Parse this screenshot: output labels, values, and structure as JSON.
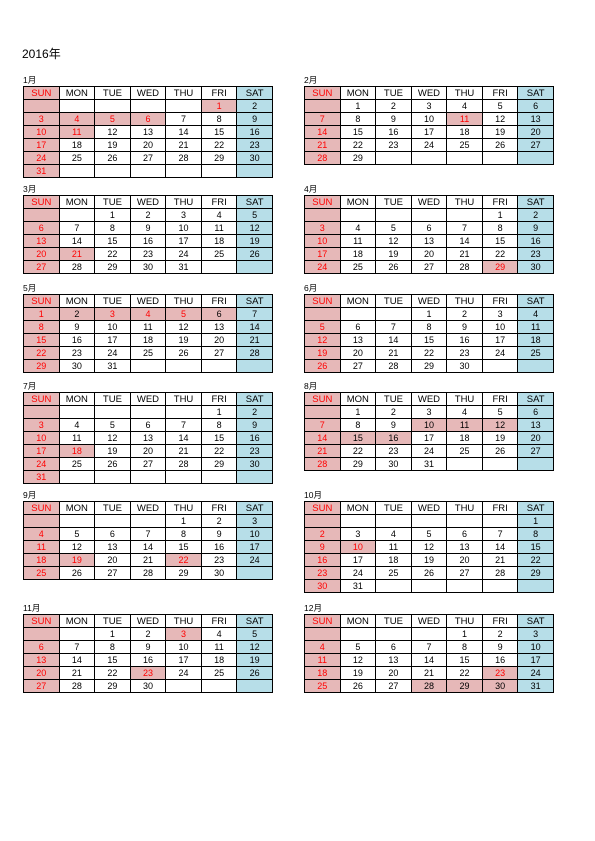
{
  "title": "2016年",
  "weekdays": [
    "SUN",
    "MON",
    "TUE",
    "WED",
    "THU",
    "FRI",
    "SAT"
  ],
  "months": [
    {
      "label": "1月",
      "weeks": [
        [
          "",
          "",
          "",
          "",
          "",
          "1",
          "2"
        ],
        [
          "3",
          "4",
          "5",
          "6",
          "7",
          "8",
          "9"
        ],
        [
          "10",
          "11",
          "12",
          "13",
          "14",
          "15",
          "16"
        ],
        [
          "17",
          "18",
          "19",
          "20",
          "21",
          "22",
          "23"
        ],
        [
          "24",
          "25",
          "26",
          "27",
          "28",
          "29",
          "30"
        ],
        [
          "31",
          "",
          "",
          "",
          "",
          "",
          ""
        ]
      ],
      "holidays": [
        "1",
        "4",
        "5",
        "6",
        "11"
      ],
      "highlight": []
    },
    {
      "label": "2月",
      "weeks": [
        [
          "",
          "1",
          "2",
          "3",
          "4",
          "5",
          "6"
        ],
        [
          "7",
          "8",
          "9",
          "10",
          "11",
          "12",
          "13"
        ],
        [
          "14",
          "15",
          "16",
          "17",
          "18",
          "19",
          "20"
        ],
        [
          "21",
          "22",
          "23",
          "24",
          "25",
          "26",
          "27"
        ],
        [
          "28",
          "29",
          "",
          "",
          "",
          "",
          ""
        ]
      ],
      "holidays": [
        "11"
      ],
      "highlight": []
    },
    {
      "label": "3月",
      "weeks": [
        [
          "",
          "",
          "1",
          "2",
          "3",
          "4",
          "5"
        ],
        [
          "6",
          "7",
          "8",
          "9",
          "10",
          "11",
          "12"
        ],
        [
          "13",
          "14",
          "15",
          "16",
          "17",
          "18",
          "19"
        ],
        [
          "20",
          "21",
          "22",
          "23",
          "24",
          "25",
          "26"
        ],
        [
          "27",
          "28",
          "29",
          "30",
          "31",
          "",
          ""
        ]
      ],
      "holidays": [
        "21"
      ],
      "highlight": []
    },
    {
      "label": "4月",
      "weeks": [
        [
          "",
          "",
          "",
          "",
          "",
          "1",
          "2"
        ],
        [
          "3",
          "4",
          "5",
          "6",
          "7",
          "8",
          "9"
        ],
        [
          "10",
          "11",
          "12",
          "13",
          "14",
          "15",
          "16"
        ],
        [
          "17",
          "18",
          "19",
          "20",
          "21",
          "22",
          "23"
        ],
        [
          "24",
          "25",
          "26",
          "27",
          "28",
          "29",
          "30"
        ]
      ],
      "holidays": [
        "29"
      ],
      "highlight": []
    },
    {
      "label": "5月",
      "weeks": [
        [
          "1",
          "2",
          "3",
          "4",
          "5",
          "6",
          "7"
        ],
        [
          "8",
          "9",
          "10",
          "11",
          "12",
          "13",
          "14"
        ],
        [
          "15",
          "16",
          "17",
          "18",
          "19",
          "20",
          "21"
        ],
        [
          "22",
          "23",
          "24",
          "25",
          "26",
          "27",
          "28"
        ],
        [
          "29",
          "30",
          "31",
          "",
          "",
          "",
          ""
        ]
      ],
      "holidays": [
        "3",
        "4",
        "5"
      ],
      "highlight": [
        "2",
        "6"
      ]
    },
    {
      "label": "6月",
      "weeks": [
        [
          "",
          "",
          "",
          "1",
          "2",
          "3",
          "4"
        ],
        [
          "5",
          "6",
          "7",
          "8",
          "9",
          "10",
          "11"
        ],
        [
          "12",
          "13",
          "14",
          "15",
          "16",
          "17",
          "18"
        ],
        [
          "19",
          "20",
          "21",
          "22",
          "23",
          "24",
          "25"
        ],
        [
          "26",
          "27",
          "28",
          "29",
          "30",
          "",
          ""
        ]
      ],
      "holidays": [],
      "highlight": []
    },
    {
      "label": "7月",
      "weeks": [
        [
          "",
          "",
          "",
          "",
          "",
          "1",
          "2"
        ],
        [
          "3",
          "4",
          "5",
          "6",
          "7",
          "8",
          "9"
        ],
        [
          "10",
          "11",
          "12",
          "13",
          "14",
          "15",
          "16"
        ],
        [
          "17",
          "18",
          "19",
          "20",
          "21",
          "22",
          "23"
        ],
        [
          "24",
          "25",
          "26",
          "27",
          "28",
          "29",
          "30"
        ],
        [
          "31",
          "",
          "",
          "",
          "",
          "",
          ""
        ]
      ],
      "holidays": [
        "18"
      ],
      "highlight": []
    },
    {
      "label": "8月",
      "weeks": [
        [
          "",
          "1",
          "2",
          "3",
          "4",
          "5",
          "6"
        ],
        [
          "7",
          "8",
          "9",
          "10",
          "11",
          "12",
          "13"
        ],
        [
          "14",
          "15",
          "16",
          "17",
          "18",
          "19",
          "20"
        ],
        [
          "21",
          "22",
          "23",
          "24",
          "25",
          "26",
          "27"
        ],
        [
          "28",
          "29",
          "30",
          "31",
          "",
          "",
          ""
        ]
      ],
      "holidays": [],
      "highlight": [
        "10",
        "11",
        "12",
        "15",
        "16"
      ]
    },
    {
      "label": "9月",
      "weeks": [
        [
          "",
          "",
          "",
          "",
          "1",
          "2",
          "3"
        ],
        [
          "4",
          "5",
          "6",
          "7",
          "8",
          "9",
          "10"
        ],
        [
          "11",
          "12",
          "13",
          "14",
          "15",
          "16",
          "17"
        ],
        [
          "18",
          "19",
          "20",
          "21",
          "22",
          "23",
          "24"
        ],
        [
          "25",
          "26",
          "27",
          "28",
          "29",
          "30",
          ""
        ]
      ],
      "holidays": [
        "19",
        "22"
      ],
      "highlight": []
    },
    {
      "label": "10月",
      "weeks": [
        [
          "",
          "",
          "",
          "",
          "",
          "",
          "1"
        ],
        [
          "2",
          "3",
          "4",
          "5",
          "6",
          "7",
          "8"
        ],
        [
          "9",
          "10",
          "11",
          "12",
          "13",
          "14",
          "15"
        ],
        [
          "16",
          "17",
          "18",
          "19",
          "20",
          "21",
          "22"
        ],
        [
          "23",
          "24",
          "25",
          "26",
          "27",
          "28",
          "29"
        ],
        [
          "30",
          "31",
          "",
          "",
          "",
          "",
          ""
        ]
      ],
      "holidays": [
        "10"
      ],
      "highlight": []
    },
    {
      "label": "11月",
      "weeks": [
        [
          "",
          "",
          "1",
          "2",
          "3",
          "4",
          "5"
        ],
        [
          "6",
          "7",
          "8",
          "9",
          "10",
          "11",
          "12"
        ],
        [
          "13",
          "14",
          "15",
          "16",
          "17",
          "18",
          "19"
        ],
        [
          "20",
          "21",
          "22",
          "23",
          "24",
          "25",
          "26"
        ],
        [
          "27",
          "28",
          "29",
          "30",
          "",
          "",
          ""
        ]
      ],
      "holidays": [
        "3",
        "23"
      ],
      "highlight": []
    },
    {
      "label": "12月",
      "weeks": [
        [
          "",
          "",
          "",
          "",
          "1",
          "2",
          "3"
        ],
        [
          "4",
          "5",
          "6",
          "7",
          "8",
          "9",
          "10"
        ],
        [
          "11",
          "12",
          "13",
          "14",
          "15",
          "16",
          "17"
        ],
        [
          "18",
          "19",
          "20",
          "21",
          "22",
          "23",
          "24"
        ],
        [
          "25",
          "26",
          "27",
          "28",
          "29",
          "30",
          "31"
        ]
      ],
      "holidays": [
        "23"
      ],
      "highlight": [
        "28",
        "29",
        "30"
      ]
    }
  ]
}
